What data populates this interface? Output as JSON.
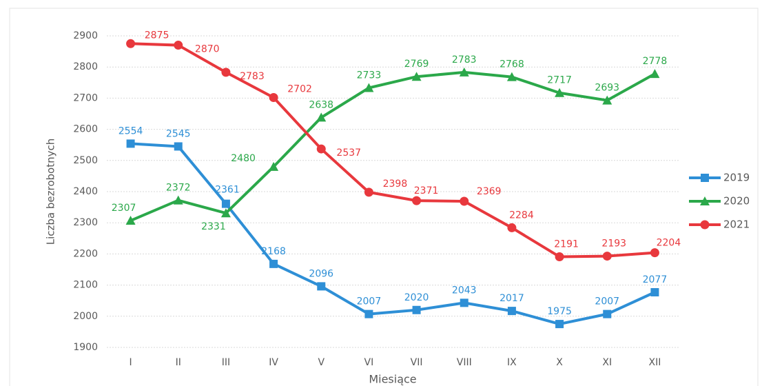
{
  "chart_data": {
    "type": "line",
    "y_label": "Liczba bezrobotnych",
    "x_label": "Miesiące",
    "categories": [
      "I",
      "II",
      "III",
      "IV",
      "V",
      "VI",
      "VII",
      "VIII",
      "IX",
      "X",
      "XI",
      "XII"
    ],
    "series": [
      {
        "name": "2019",
        "color": "#2e8fd6",
        "marker": "square",
        "values": [
          2554,
          2545,
          2361,
          2168,
          2096,
          2007,
          2020,
          2043,
          2017,
          1975,
          2007,
          2077
        ]
      },
      {
        "name": "2020",
        "color": "#2ba84a",
        "marker": "triangle",
        "values": [
          2307,
          2372,
          2331,
          2480,
          2638,
          2733,
          2769,
          2783,
          2768,
          2717,
          2693,
          2778
        ]
      },
      {
        "name": "2021",
        "color": "#e8383d",
        "marker": "circle",
        "values": [
          2875,
          2870,
          2783,
          2702,
          2537,
          2398,
          2371,
          2369,
          2284,
          2191,
          2193,
          2204
        ]
      }
    ],
    "ylim": [
      1900,
      2900
    ],
    "yticks": [
      1900,
      2000,
      2100,
      2200,
      2300,
      2400,
      2500,
      2600,
      2700,
      2800,
      2900
    ],
    "grid": true,
    "legend": "right"
  }
}
